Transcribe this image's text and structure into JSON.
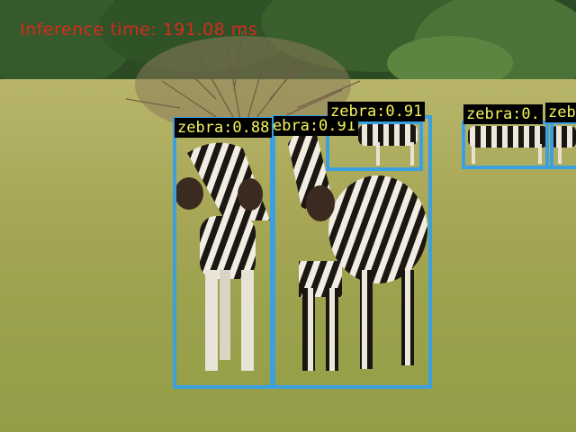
{
  "overlay": {
    "inference_text": "Inference time: 191.08 ms",
    "inference_color": "#d62b1e",
    "box_color": "#3aa0e0",
    "label_text_color": "#f5f55a",
    "label_bg_color": "#000000"
  },
  "detections": [
    {
      "label": "zebra:0.88",
      "class": "zebra",
      "score": 0.88
    },
    {
      "label": "zebra:0.91",
      "class": "zebra",
      "score": 0.91
    },
    {
      "label": "zebra:0.91",
      "class": "zebra",
      "score": 0.91
    },
    {
      "label": "zebra:0.",
      "class": "zebra"
    },
    {
      "label": "zeb",
      "class": "zebra"
    }
  ]
}
